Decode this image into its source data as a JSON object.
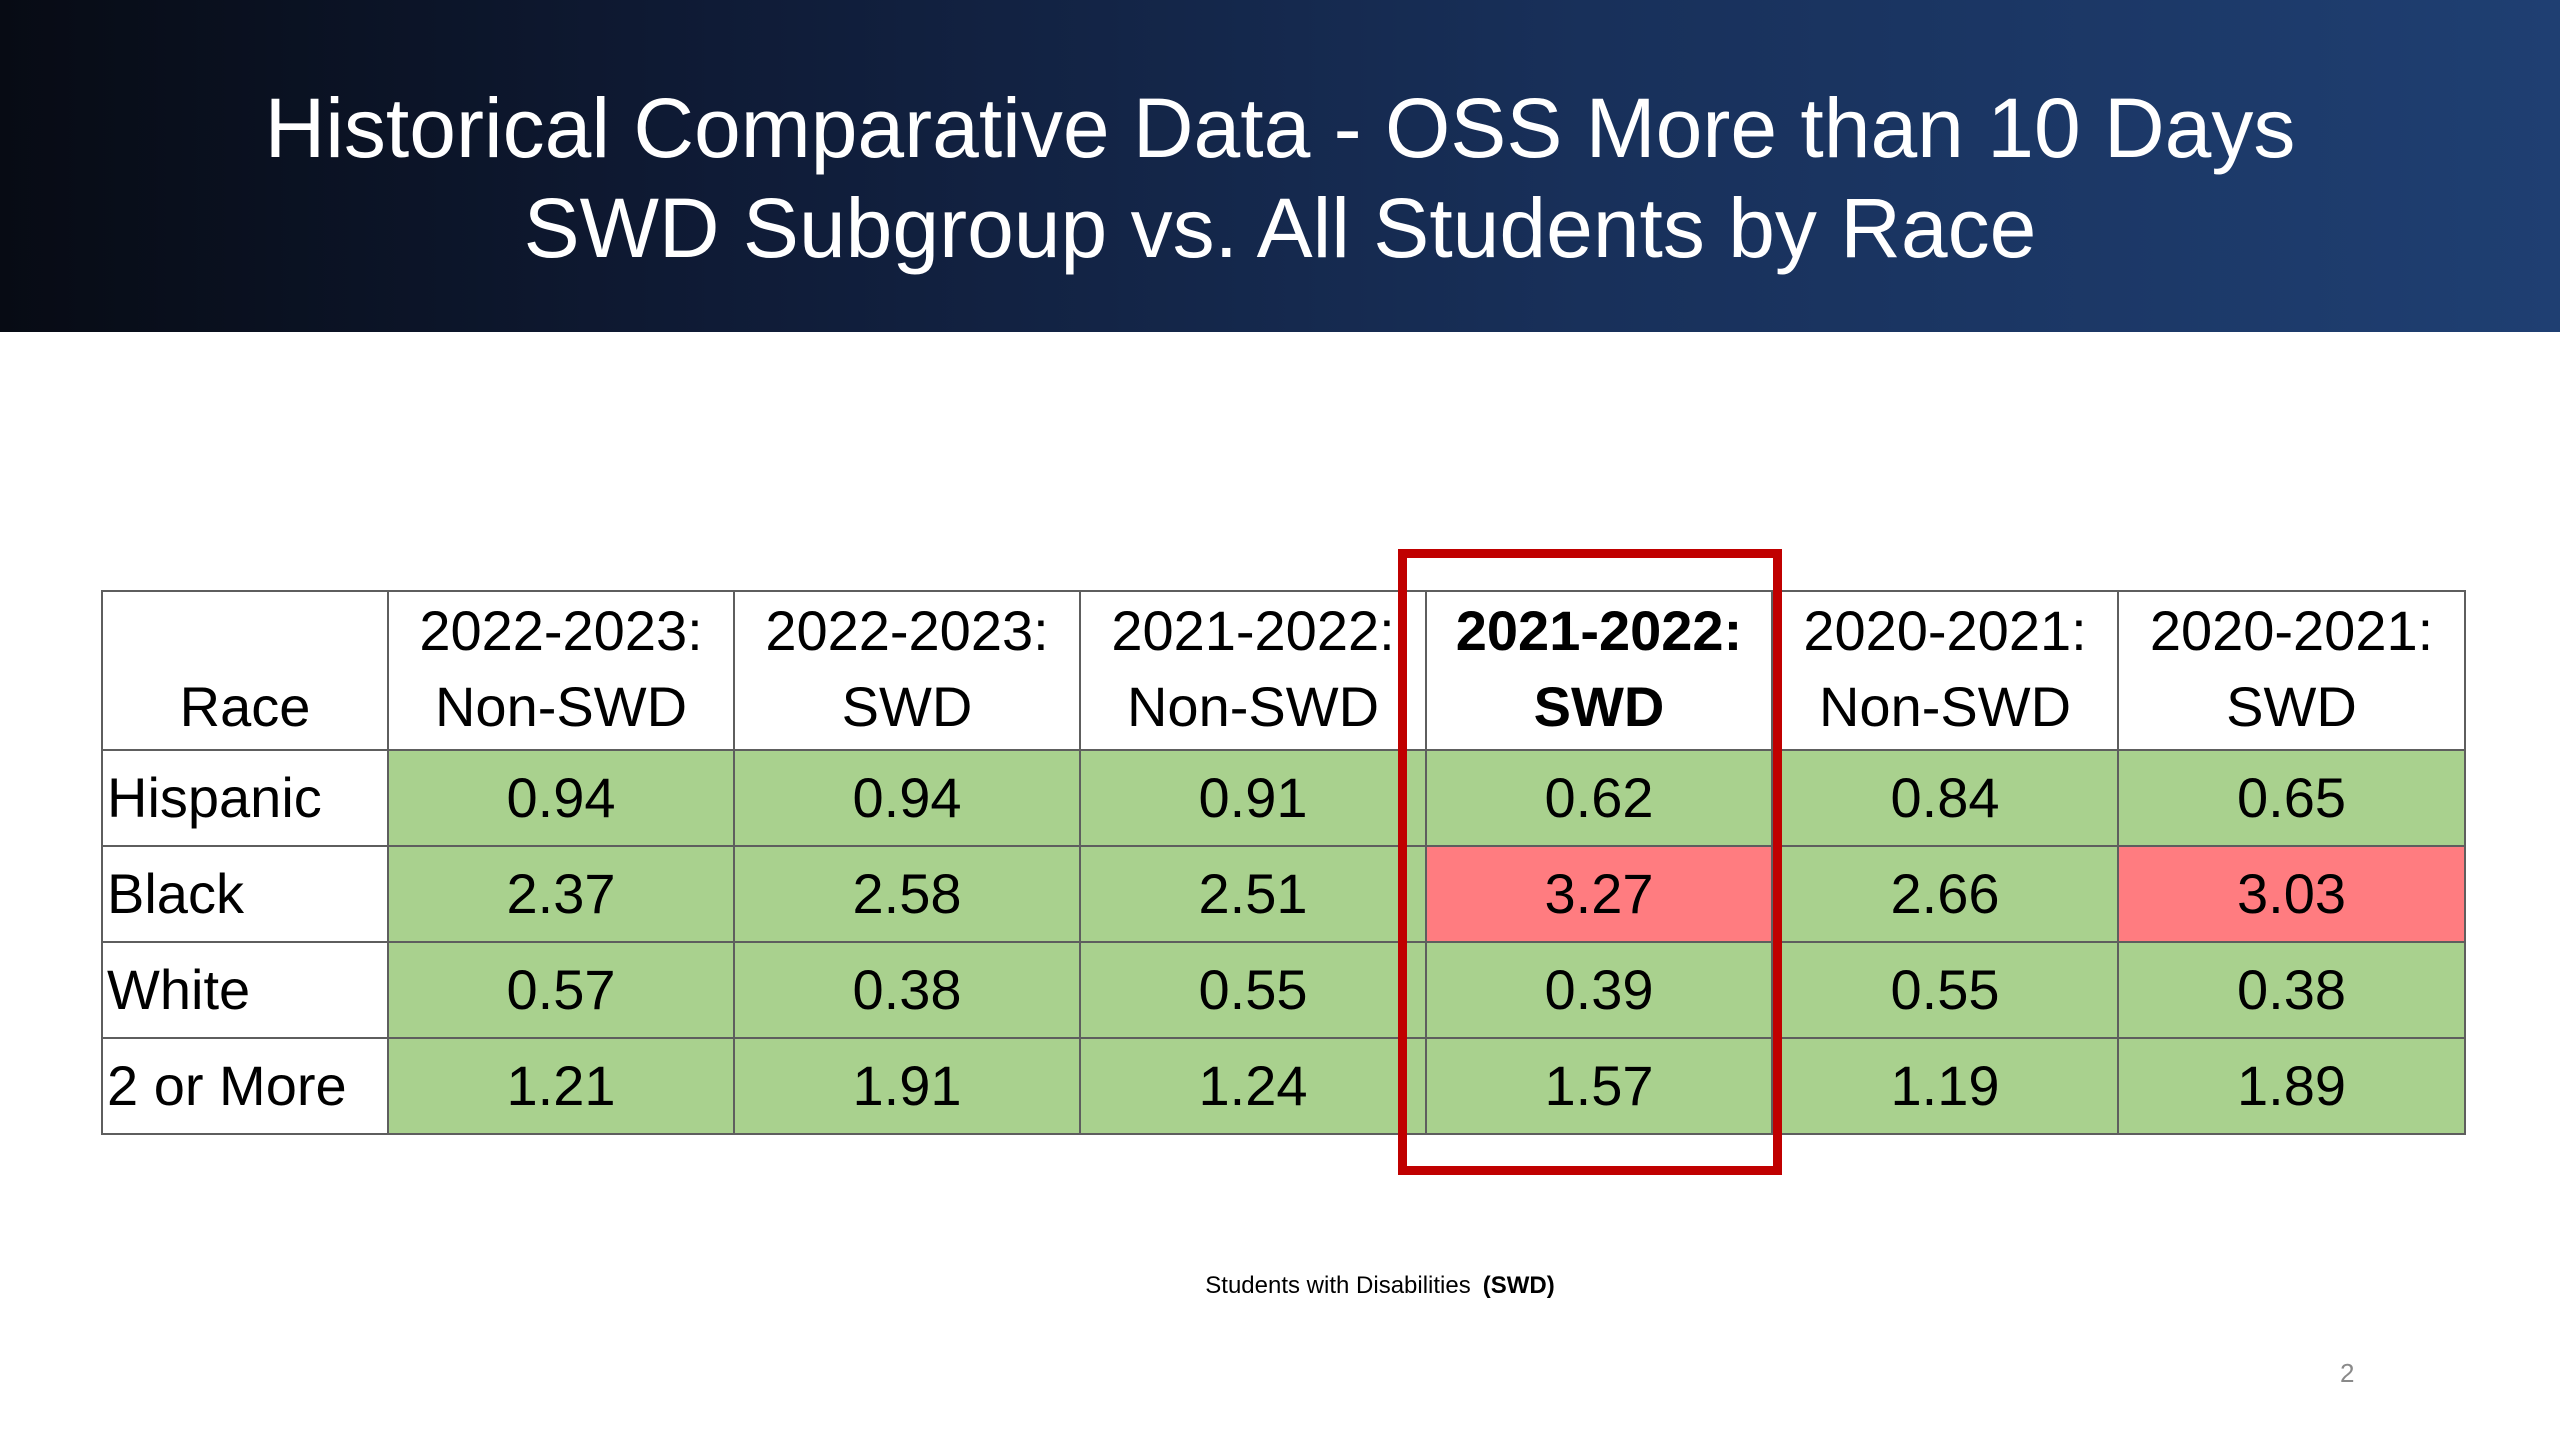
{
  "slide": {
    "title_line_1": "Historical Comparative Data - OSS More than 10 Days",
    "title_line_2": "SWD Subgroup vs. All Students by Race",
    "footnote_text": "Students with Disabilities",
    "footnote_abbr": "(SWD)",
    "page_number": "2"
  },
  "table": {
    "header_race": "Race",
    "columns": [
      {
        "line1": "2022-2023:",
        "line2": "Non-SWD"
      },
      {
        "line1": "2022-2023:",
        "line2": "SWD"
      },
      {
        "line1": "2021-2022:",
        "line2": "Non-SWD"
      },
      {
        "line1": "2021-2022:",
        "line2": "SWD"
      },
      {
        "line1": "2020-2021:",
        "line2": "Non-SWD"
      },
      {
        "line1": "2020-2021:",
        "line2": "SWD"
      }
    ],
    "rows": [
      {
        "race": "Hispanic",
        "values": [
          "0.94",
          "0.94",
          "0.91",
          "0.62",
          "0.84",
          "0.65"
        ]
      },
      {
        "race": "Black",
        "values": [
          "2.37",
          "2.58",
          "2.51",
          "3.27",
          "2.66",
          "3.03"
        ]
      },
      {
        "race": "White",
        "values": [
          "0.57",
          "0.38",
          "0.55",
          "0.39",
          "0.55",
          "0.38"
        ]
      },
      {
        "race": "2 or More",
        "values": [
          "1.21",
          "1.91",
          "1.24",
          "1.57",
          "1.19",
          "1.89"
        ]
      }
    ]
  },
  "colors": {
    "green_cell": "#a9d18e",
    "red_cell": "#ff7c80",
    "highlight_border": "#c00000",
    "header_dark": "#0f1b36",
    "header_light": "#1f3f72"
  }
}
